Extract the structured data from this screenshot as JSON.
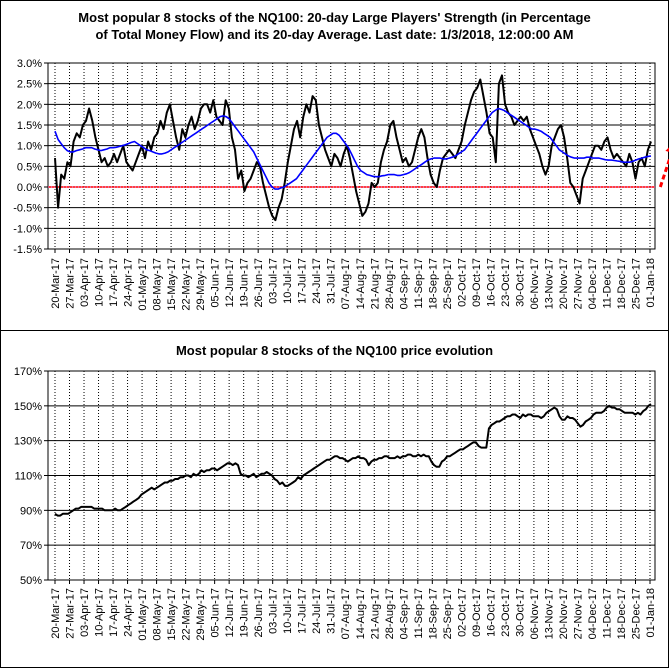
{
  "chart_data": [
    {
      "type": "line",
      "title": "Most popular 8 stocks of the NQ100: 20-day Large Players' Strength (in Percentage of Total Money Flow) and its 20-day Average. Last date: 1/3/2018, 12:00:00 AM",
      "title_lines": [
        "Most popular 8 stocks of the NQ100: 20-day Large Players' Strength (in Percentage",
        "of Total Money Flow) and its 20-day Average. Last date: 1/3/2018, 12:00:00 AM"
      ],
      "ylim": [
        -1.5,
        3.0
      ],
      "y_ticks": [
        "-1.5%",
        "-1.0%",
        "-0.5%",
        "0.0%",
        "0.5%",
        "1.0%",
        "1.5%",
        "2.0%",
        "2.5%",
        "3.0%"
      ],
      "x_tick_labels": [
        "20-Mar-17",
        "27-Mar-17",
        "03-Apr-17",
        "10-Apr-17",
        "17-Apr-17",
        "24-Apr-17",
        "01-May-17",
        "08-May-17",
        "15-May-17",
        "22-May-17",
        "29-May-17",
        "05-Jun-17",
        "12-Jun-17",
        "19-Jun-17",
        "26-Jun-17",
        "03-Jul-17",
        "10-Jul-17",
        "17-Jul-17",
        "24-Jul-17",
        "31-Jul-17",
        "07-Aug-17",
        "14-Aug-17",
        "21-Aug-17",
        "28-Aug-17",
        "04-Sep-17",
        "11-Sep-17",
        "18-Sep-17",
        "25-Sep-17",
        "02-Oct-17",
        "09-Oct-17",
        "16-Oct-17",
        "23-Oct-17",
        "30-Oct-17",
        "06-Nov-17",
        "13-Nov-17",
        "20-Nov-17",
        "27-Nov-17",
        "04-Dec-17",
        "11-Dec-17",
        "18-Dec-17",
        "25-Dec-17",
        "01-Jan-18"
      ],
      "grid": true,
      "series": [
        {
          "color": "#000000",
          "values": [
            0.7,
            -0.5,
            0.3,
            0.2,
            0.6,
            0.5,
            1.1,
            1.3,
            1.2,
            1.5,
            1.6,
            1.9,
            1.6,
            1.2,
            0.9,
            0.6,
            0.7,
            0.5,
            0.6,
            0.8,
            0.6,
            0.8,
            1.0,
            0.6,
            0.5,
            0.4,
            0.6,
            0.8,
            1.0,
            0.7,
            1.1,
            0.9,
            1.2,
            1.3,
            1.6,
            1.4,
            1.8,
            2.0,
            1.6,
            1.2,
            0.9,
            1.4,
            1.2,
            1.5,
            1.7,
            1.4,
            1.6,
            1.9,
            2.0,
            2.0,
            1.8,
            2.1,
            1.7,
            1.6,
            1.5,
            2.1,
            1.9,
            1.2,
            0.9,
            0.2,
            0.4,
            -0.1,
            0.1,
            0.2,
            0.4,
            0.6,
            0.5,
            0.1,
            -0.2,
            -0.5,
            -0.7,
            -0.8,
            -0.5,
            -0.3,
            0.1,
            0.6,
            1.0,
            1.4,
            1.6,
            1.2,
            1.7,
            2.0,
            1.8,
            2.2,
            2.1,
            1.5,
            1.2,
            0.9,
            0.7,
            0.5,
            0.8,
            0.7,
            0.5,
            0.8,
            1.0,
            0.7,
            0.3,
            -0.1,
            -0.4,
            -0.7,
            -0.6,
            -0.4,
            0.1,
            0.0,
            0.1,
            0.6,
            0.9,
            1.1,
            1.5,
            1.6,
            1.2,
            0.9,
            0.6,
            0.7,
            0.5,
            0.6,
            0.9,
            1.2,
            1.4,
            1.2,
            0.7,
            0.3,
            0.1,
            0.0,
            0.4,
            0.7,
            0.8,
            0.9,
            0.8,
            0.7,
            0.9,
            1.1,
            1.5,
            1.8,
            2.1,
            2.3,
            2.4,
            2.6,
            2.2,
            1.8,
            1.3,
            1.2,
            0.6,
            2.5,
            2.7,
            2.0,
            1.8,
            1.7,
            1.5,
            1.6,
            1.7,
            1.6,
            1.7,
            1.4,
            1.2,
            1.0,
            0.8,
            0.5,
            0.3,
            0.5,
            1.0,
            1.2,
            1.4,
            1.5,
            1.2,
            0.7,
            0.1,
            0.0,
            -0.2,
            -0.4,
            0.2,
            0.4,
            0.6,
            0.8,
            1.0,
            1.0,
            0.9,
            1.1,
            1.2,
            0.9,
            0.7,
            0.8,
            0.7,
            0.6,
            0.5,
            0.8,
            0.6,
            0.2,
            0.6,
            0.7,
            0.5,
            0.9,
            1.1
          ]
        },
        {
          "color": "#0000ff",
          "values": [
            1.35,
            1.15,
            1.05,
            0.95,
            0.88,
            0.85,
            0.85,
            0.88,
            0.9,
            0.92,
            0.95,
            0.95,
            0.95,
            0.92,
            0.9,
            0.88,
            0.9,
            0.92,
            0.95,
            0.95,
            0.96,
            0.98,
            1.0,
            1.02,
            1.05,
            1.08,
            1.1,
            1.05,
            1.0,
            0.95,
            0.9,
            0.88,
            0.85,
            0.82,
            0.8,
            0.8,
            0.82,
            0.85,
            0.9,
            0.95,
            1.0,
            1.05,
            1.1,
            1.15,
            1.2,
            1.25,
            1.3,
            1.35,
            1.4,
            1.45,
            1.5,
            1.55,
            1.6,
            1.65,
            1.7,
            1.72,
            1.7,
            1.65,
            1.55,
            1.45,
            1.35,
            1.25,
            1.15,
            1.05,
            0.95,
            0.85,
            0.7,
            0.55,
            0.4,
            0.25,
            0.1,
            0.0,
            -0.05,
            -0.05,
            -0.02,
            0.0,
            0.05,
            0.1,
            0.15,
            0.2,
            0.3,
            0.4,
            0.5,
            0.6,
            0.7,
            0.8,
            0.9,
            1.0,
            1.1,
            1.2,
            1.25,
            1.3,
            1.3,
            1.25,
            1.15,
            1.05,
            0.95,
            0.8,
            0.65,
            0.5,
            0.4,
            0.35,
            0.3,
            0.28,
            0.26,
            0.25,
            0.25,
            0.27,
            0.28,
            0.3,
            0.3,
            0.3,
            0.28,
            0.28,
            0.3,
            0.32,
            0.35,
            0.4,
            0.45,
            0.5,
            0.55,
            0.6,
            0.65,
            0.68,
            0.7,
            0.7,
            0.7,
            0.68,
            0.68,
            0.7,
            0.72,
            0.75,
            0.8,
            0.85,
            0.9,
            1.0,
            1.1,
            1.2,
            1.3,
            1.4,
            1.5,
            1.6,
            1.7,
            1.8,
            1.85,
            1.9,
            1.88,
            1.85,
            1.8,
            1.75,
            1.7,
            1.65,
            1.6,
            1.55,
            1.5,
            1.45,
            1.4,
            1.4,
            1.38,
            1.35,
            1.3,
            1.25,
            1.2,
            1.1,
            1.0,
            0.9,
            0.85,
            0.8,
            0.75,
            0.72,
            0.7,
            0.7,
            0.7,
            0.7,
            0.72,
            0.72,
            0.7,
            0.7,
            0.7,
            0.68,
            0.66,
            0.65,
            0.65,
            0.64,
            0.63,
            0.62,
            0.6,
            0.6,
            0.6,
            0.62,
            0.65,
            0.68,
            0.7,
            0.72,
            0.74,
            0.75
          ]
        }
      ],
      "reference_line": {
        "y": 0.0,
        "color": "#ff0000"
      },
      "annotation": {
        "kind": "dashed-arrow",
        "color": "#ff0000",
        "from": [
          195,
          0.0
        ],
        "to": [
          199,
          1.05
        ]
      }
    },
    {
      "type": "line",
      "title": "Most popular 8 stocks of the NQ100 price evolution",
      "ylim": [
        50,
        170
      ],
      "y_ticks": [
        "50%",
        "70%",
        "90%",
        "110%",
        "130%",
        "150%",
        "170%"
      ],
      "x_tick_labels": [
        "20-Mar-17",
        "27-Mar-17",
        "03-Apr-17",
        "10-Apr-17",
        "17-Apr-17",
        "24-Apr-17",
        "01-May-17",
        "08-May-17",
        "15-May-17",
        "22-May-17",
        "29-May-17",
        "05-Jun-17",
        "12-Jun-17",
        "19-Jun-17",
        "26-Jun-17",
        "03-Jul-17",
        "10-Jul-17",
        "17-Jul-17",
        "24-Jul-17",
        "31-Jul-17",
        "07-Aug-17",
        "14-Aug-17",
        "21-Aug-17",
        "28-Aug-17",
        "04-Sep-17",
        "11-Sep-17",
        "18-Sep-17",
        "25-Sep-17",
        "02-Oct-17",
        "09-Oct-17",
        "16-Oct-17",
        "23-Oct-17",
        "30-Oct-17",
        "06-Nov-17",
        "13-Nov-17",
        "20-Nov-17",
        "27-Nov-17",
        "04-Dec-17",
        "11-Dec-17",
        "18-Dec-17",
        "25-Dec-17",
        "01-Jan-18"
      ],
      "grid": true,
      "series": [
        {
          "color": "#000000",
          "values": [
            88,
            87,
            87,
            88,
            88,
            88,
            89,
            90,
            91,
            91,
            92,
            92,
            92,
            92,
            92,
            91,
            91,
            91,
            91,
            90,
            90,
            90,
            90,
            91,
            90,
            90,
            91,
            92,
            93,
            94,
            95,
            96,
            97,
            99,
            100,
            101,
            102,
            103,
            102,
            103,
            104,
            105,
            106,
            106,
            107,
            107,
            108,
            108,
            109,
            109,
            110,
            110,
            109,
            111,
            110,
            111,
            113,
            112,
            113,
            113,
            114,
            114,
            113,
            114,
            115,
            116,
            117,
            117,
            116,
            117,
            116,
            111,
            110,
            110,
            109,
            110,
            111,
            109,
            110,
            111,
            111,
            112,
            111,
            110,
            108,
            107,
            105,
            106,
            104,
            104,
            105,
            106,
            107,
            109,
            108,
            110,
            111,
            112,
            113,
            114,
            115,
            116,
            117,
            118,
            119,
            119,
            120,
            121,
            121,
            120,
            120,
            119,
            118,
            119,
            120,
            120,
            121,
            120,
            120,
            119,
            116,
            118,
            119,
            119,
            120,
            120,
            121,
            121,
            120,
            120,
            120,
            121,
            120,
            121,
            121,
            122,
            122,
            121,
            121,
            122,
            121,
            122,
            121,
            121,
            118,
            116,
            115,
            115,
            118,
            119,
            121,
            121,
            122,
            123,
            124,
            125,
            125,
            126,
            127,
            128,
            129,
            129,
            127,
            126,
            126,
            126,
            137,
            139,
            140,
            141,
            141,
            142,
            143,
            144,
            144,
            145,
            145,
            144,
            143,
            145,
            144,
            145,
            145,
            144,
            144,
            144,
            143,
            144,
            146,
            147,
            148,
            149,
            148,
            144,
            142,
            142,
            144,
            143,
            143,
            142,
            140,
            138,
            139,
            141,
            142,
            143,
            145,
            146,
            146,
            146,
            147,
            149,
            150,
            149,
            149,
            148,
            148,
            147,
            146,
            146,
            146,
            146,
            145,
            146,
            145,
            147,
            148,
            150,
            151
          ]
        }
      ]
    }
  ]
}
